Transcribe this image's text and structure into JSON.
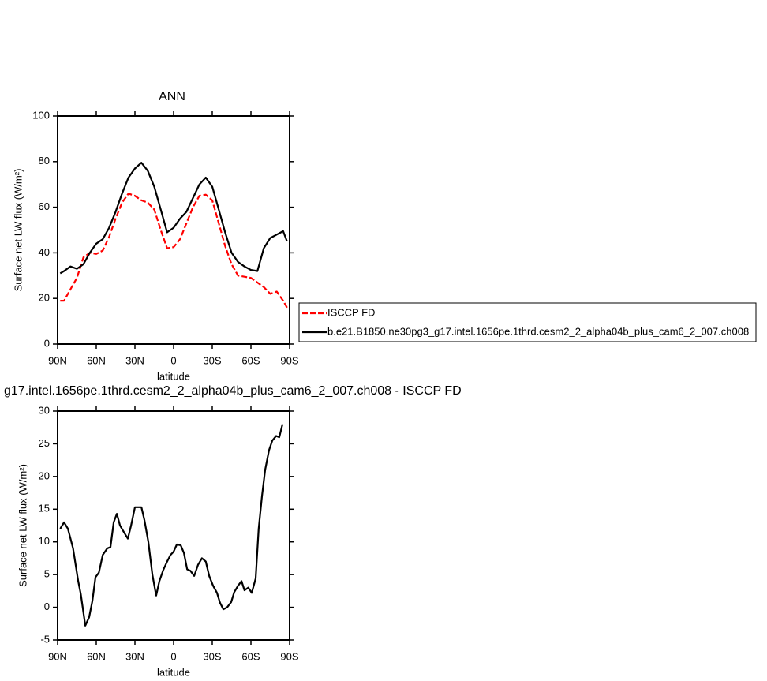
{
  "chart_data": [
    {
      "type": "line",
      "title": "ANN",
      "xlabel": "latitude",
      "ylabel": "Surface net LW flux (W/m²)",
      "x": [
        88,
        85,
        80,
        75,
        70,
        65,
        60,
        55,
        50,
        45,
        40,
        35,
        30,
        25,
        20,
        15,
        10,
        5,
        0,
        -5,
        -10,
        -15,
        -20,
        -25,
        -30,
        -35,
        -40,
        -45,
        -50,
        -55,
        -60,
        -65,
        -70,
        -75,
        -80,
        -85,
        -88
      ],
      "series": [
        {
          "name": "ISCCP FD",
          "color": "#ff0000",
          "dash": "dashed",
          "values": [
            19,
            19,
            24,
            29,
            38,
            40,
            39.5,
            41,
            47,
            55,
            62,
            66,
            65,
            63,
            62,
            59,
            50,
            42,
            42.5,
            46,
            53,
            60,
            65,
            65.5,
            63,
            53,
            43,
            35,
            30,
            29.5,
            29,
            27,
            25,
            22,
            23,
            19,
            16
          ]
        },
        {
          "name": "b.e21.B1850.ne30pg3_g17.intel.1656pe.1thrd.cesm2_2_alpha04b_plus_cam6_2_007.ch008",
          "color": "#000000",
          "dash": "solid",
          "values": [
            31,
            32,
            34,
            33,
            35,
            40,
            44,
            46,
            51,
            58,
            66,
            73,
            77,
            79.5,
            76,
            69,
            59,
            49,
            51,
            55,
            58,
            64,
            70,
            73,
            69,
            59,
            49,
            40,
            36,
            34,
            32.5,
            32,
            42,
            46.5,
            48,
            49.5,
            45
          ]
        }
      ],
      "xlim": [
        90,
        -90
      ],
      "xticks": [
        {
          "value": 90,
          "label": "90N"
        },
        {
          "value": 60,
          "label": "60N"
        },
        {
          "value": 30,
          "label": "30N"
        },
        0,
        {
          "value": -30,
          "label": "30S"
        },
        {
          "value": -60,
          "label": "60S"
        },
        {
          "value": -90,
          "label": "90S"
        }
      ],
      "ylim": [
        0,
        100
      ],
      "yticks": [
        0,
        20,
        40,
        60,
        80,
        100
      ]
    },
    {
      "type": "line",
      "title": "g17.intel.1656pe.1thrd.cesm2_2_alpha04b_plus_cam6_2_007.ch008 - ISCCP FD",
      "xlabel": "latitude",
      "ylabel": "Surface net LW flux (W/m²)",
      "x": [
        88,
        85,
        82,
        78,
        74,
        72,
        68.5,
        65.5,
        63,
        60.6,
        58,
        55,
        51.5,
        49,
        46.5,
        44,
        41.6,
        38.6,
        35.5,
        33,
        30,
        25,
        22.6,
        19.6,
        16.5,
        13.5,
        11,
        8,
        5,
        2.4,
        0,
        -2.5,
        -5.5,
        -8,
        -10.5,
        -13,
        -16,
        -19,
        -22,
        -25,
        -27.6,
        -30.6,
        -33.7,
        -36,
        -38.6,
        -41.6,
        -44.7,
        -47,
        -50,
        -52.7,
        -55,
        -58,
        -60.6,
        -63.7,
        -66,
        -68.6,
        -71,
        -74,
        -76.6,
        -79.6,
        -82,
        -84.5
      ],
      "values": [
        12,
        13,
        12,
        9,
        4,
        2,
        -2.8,
        -1.5,
        1,
        4.6,
        5.3,
        8,
        9,
        9.2,
        13,
        14.3,
        12.5,
        11.5,
        10.5,
        12.5,
        15.3,
        15.3,
        13.3,
        10,
        5,
        1.8,
        4,
        5.7,
        7,
        8,
        8.5,
        9.6,
        9.5,
        8.3,
        5.8,
        5.6,
        4.8,
        6.5,
        7.5,
        7,
        4.8,
        3.3,
        2.2,
        0.7,
        -0.3,
        0,
        0.8,
        2.3,
        3.3,
        4,
        2.6,
        3,
        2.2,
        4.4,
        12,
        17,
        21,
        24,
        25.5,
        26.2,
        26,
        28
      ],
      "color": "#000000",
      "xlim": [
        90,
        -90
      ],
      "xticks": [
        {
          "value": 90,
          "label": "90N"
        },
        {
          "value": 60,
          "label": "60N"
        },
        {
          "value": 30,
          "label": "30N"
        },
        0,
        {
          "value": -30,
          "label": "30S"
        },
        {
          "value": -60,
          "label": "60S"
        },
        {
          "value": -90,
          "label": "90S"
        }
      ],
      "ylim": [
        -5,
        30
      ],
      "yticks": [
        -5,
        0,
        5,
        10,
        15,
        20,
        25,
        30
      ]
    }
  ]
}
